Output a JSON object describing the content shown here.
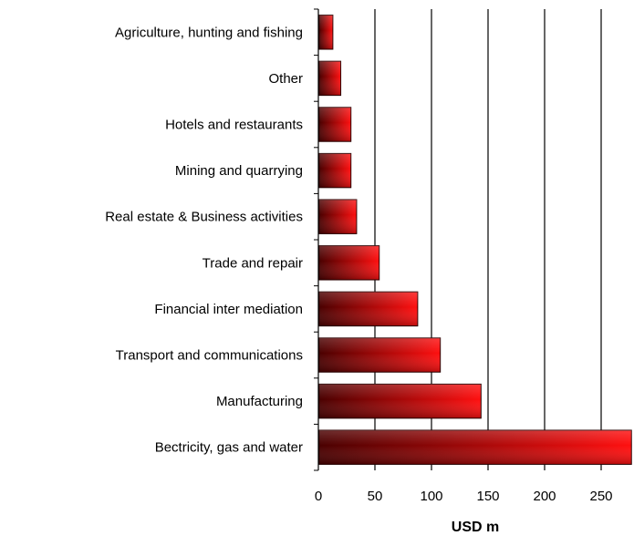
{
  "chart_data": {
    "type": "bar",
    "orientation": "horizontal",
    "categories": [
      "Agriculture, hunting and fishing",
      "Other",
      "Hotels and restaurants",
      "Mining and quarrying",
      "Real estate & Business activities",
      "Trade and repair",
      "Financial intermediation",
      "Transport and communications",
      "Manufacturing",
      "Electricity, gas and water"
    ],
    "category_labels_as_printed": [
      "Agriculture, hunting and fishing",
      "Other",
      "Hotels and restaurants",
      "Mining and quarrying",
      "Real estate & Business activities",
      "Trade and repair",
      "Financial inter mediation",
      "Transport and communications",
      "Manufacturing",
      "Bectricity, gas and water"
    ],
    "values": [
      12,
      19,
      28,
      28,
      33,
      53,
      87,
      107,
      143,
      276
    ],
    "xlabel": "USD m",
    "ylabel": "",
    "xlim": [
      0,
      275
    ],
    "xticks": [
      0,
      50,
      100,
      150,
      200,
      250
    ],
    "grid": "vertical",
    "bar_color": "#e00000",
    "bar_dark_color": "#5a0000"
  }
}
